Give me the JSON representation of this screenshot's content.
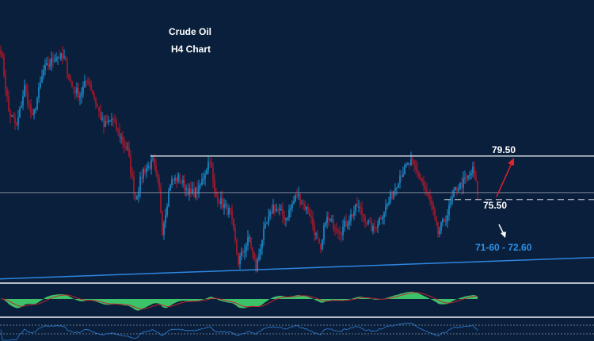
{
  "chart_data": {
    "type": "candlestick",
    "title": "Crude Oil",
    "subtitle": "H4 Chart",
    "ylim": [
      68.0,
      93.8
    ],
    "bars": 302,
    "close_keypoints": [
      [
        0,
        89.3
      ],
      [
        5,
        83.6
      ],
      [
        10,
        82.2
      ],
      [
        15,
        85.8
      ],
      [
        20,
        82.9
      ],
      [
        27,
        87.3
      ],
      [
        35,
        88.7
      ],
      [
        40,
        88.4
      ],
      [
        45,
        85.8
      ],
      [
        50,
        85.1
      ],
      [
        55,
        86.6
      ],
      [
        65,
        82.2
      ],
      [
        70,
        82.9
      ],
      [
        80,
        80.0
      ],
      [
        85,
        75.6
      ],
      [
        90,
        78.2
      ],
      [
        96,
        78.9
      ],
      [
        100,
        76.4
      ],
      [
        102,
        72.7
      ],
      [
        107,
        77.1
      ],
      [
        112,
        77.5
      ],
      [
        120,
        76.0
      ],
      [
        125,
        76.4
      ],
      [
        132,
        79.3
      ],
      [
        135,
        76.0
      ],
      [
        145,
        74.2
      ],
      [
        150,
        69.8
      ],
      [
        157,
        72.0
      ],
      [
        161,
        69.1
      ],
      [
        165,
        72.0
      ],
      [
        172,
        74.9
      ],
      [
        180,
        73.8
      ],
      [
        187,
        76.0
      ],
      [
        195,
        74.2
      ],
      [
        202,
        70.6
      ],
      [
        205,
        73.8
      ],
      [
        215,
        72.7
      ],
      [
        225,
        74.9
      ],
      [
        235,
        72.7
      ],
      [
        245,
        75.3
      ],
      [
        252,
        77.8
      ],
      [
        259,
        78.9
      ],
      [
        265,
        77.5
      ],
      [
        272,
        74.9
      ],
      [
        276,
        72.4
      ],
      [
        282,
        74.2
      ],
      [
        287,
        76.4
      ],
      [
        295,
        77.5
      ],
      [
        298,
        78.2
      ],
      [
        301,
        76.2
      ]
    ],
    "levels": {
      "resistance": {
        "price": 79.5,
        "label": "79.50"
      },
      "pivot": {
        "price": 76.15
      },
      "support": {
        "price": 75.5,
        "label": "75.50"
      },
      "target": {
        "label": "71-60 - 72.60"
      }
    },
    "trendline": {
      "start": [
        0,
        68.24
      ],
      "end": [
        375,
        70.2
      ]
    },
    "colors": {
      "bg": "#0a1f3b",
      "up": "#1c8fd0",
      "down": "#b3182c",
      "macd": "#3cc36a",
      "signal": "#c0262f",
      "rsi": "#2f7fd6",
      "trend": "#2f86e0"
    }
  }
}
